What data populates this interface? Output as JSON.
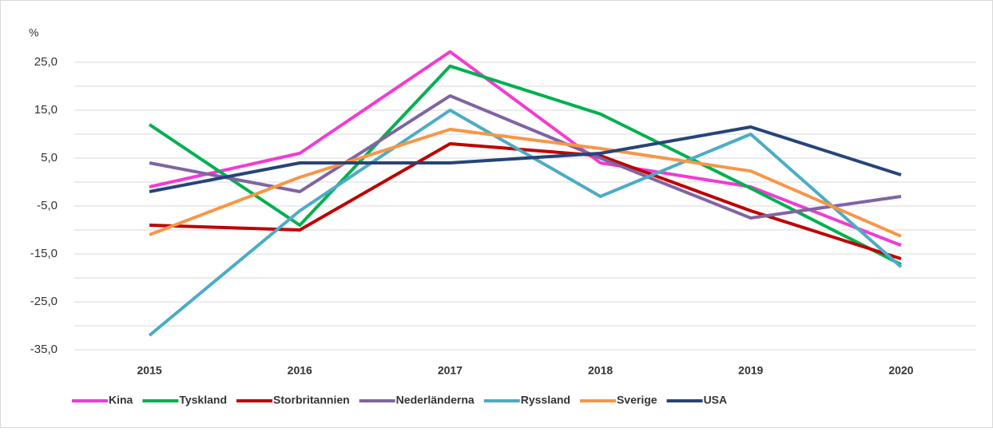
{
  "chart_data": {
    "type": "line",
    "y_unit": "%",
    "categories": [
      "2015",
      "2016",
      "2017",
      "2018",
      "2019",
      "2020"
    ],
    "series": [
      {
        "name": "Kina",
        "color": "#f23bd3",
        "values": [
          -1,
          6,
          27.2,
          4,
          -1,
          -13.2
        ]
      },
      {
        "name": "Tyskland",
        "color": "#00b050",
        "values": [
          12,
          -9,
          24.2,
          14.2,
          -1.3,
          -17.2
        ]
      },
      {
        "name": "Storbritannien",
        "color": "#c00000",
        "values": [
          -9,
          -10,
          8,
          5.5,
          -6,
          -16
        ]
      },
      {
        "name": "Nederländerna",
        "color": "#8064a2",
        "values": [
          4,
          -2,
          18,
          5,
          -7.5,
          -3
        ]
      },
      {
        "name": "Ryssland",
        "color": "#4bacc6",
        "values": [
          -32,
          -6,
          15,
          -3,
          10,
          -17.7
        ]
      },
      {
        "name": "Sverige",
        "color": "#f79646",
        "values": [
          -11,
          1,
          11,
          7,
          2.3,
          -11.3
        ]
      },
      {
        "name": "USA",
        "color": "#264478",
        "values": [
          -2,
          4,
          4,
          6,
          11.5,
          1.5
        ]
      }
    ],
    "ylim": [
      -35,
      30
    ],
    "yticks": [
      {
        "value": 25,
        "label": "25,0"
      },
      {
        "value": 15,
        "label": "15,0"
      },
      {
        "value": 5,
        "label": "5,0"
      },
      {
        "value": -5,
        "label": "-5,0"
      },
      {
        "value": -15,
        "label": "-15,0"
      },
      {
        "value": -25,
        "label": "-25,0"
      },
      {
        "value": -35,
        "label": "-35,0"
      }
    ],
    "minor_gridlines": [
      20,
      10,
      0,
      -10,
      -20,
      -30
    ],
    "grid": true,
    "legend": "bottom"
  }
}
